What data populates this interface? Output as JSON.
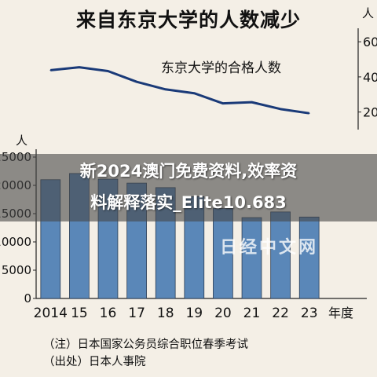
{
  "overlay": {
    "line1": "新2024澳门免费资料,效率资",
    "line2": "料解释落实_Elite10.683"
  },
  "watermark": "日经中文网",
  "notes": {
    "note": "（注）日本国家公务员综合职位春季考试",
    "source": "（出处）日本人事院"
  },
  "chart_data": {
    "type": "bar",
    "title": "来自东京大学的人数减少",
    "categories": [
      "2014",
      "15",
      "16",
      "17",
      "18",
      "19",
      "20",
      "21",
      "22",
      "23"
    ],
    "x_axis_trailing_label": "年度",
    "bar_color": "#5a87b8",
    "line_color": "#1a3a78",
    "series": [
      {
        "type": "bar",
        "axis": "left",
        "values": [
          21000,
          22100,
          21100,
          20400,
          19600,
          18000,
          15900,
          14300,
          15300,
          14400
        ]
      },
      {
        "type": "line",
        "axis": "right",
        "name": "东京大学的合格人数",
        "values": [
          438,
          455,
          433,
          372,
          329,
          307,
          249,
          256,
          217,
          193
        ]
      }
    ],
    "left_axis": {
      "unit_label": "人",
      "ylim": [
        0,
        25000
      ],
      "ticks": [
        "0",
        "5000",
        "10000",
        "15000",
        "20000",
        "25000"
      ]
    },
    "right_axis": {
      "unit_label": "人",
      "ylim": [
        100,
        650
      ],
      "ticks": [
        "200",
        "400",
        "600"
      ]
    },
    "grid": false
  }
}
